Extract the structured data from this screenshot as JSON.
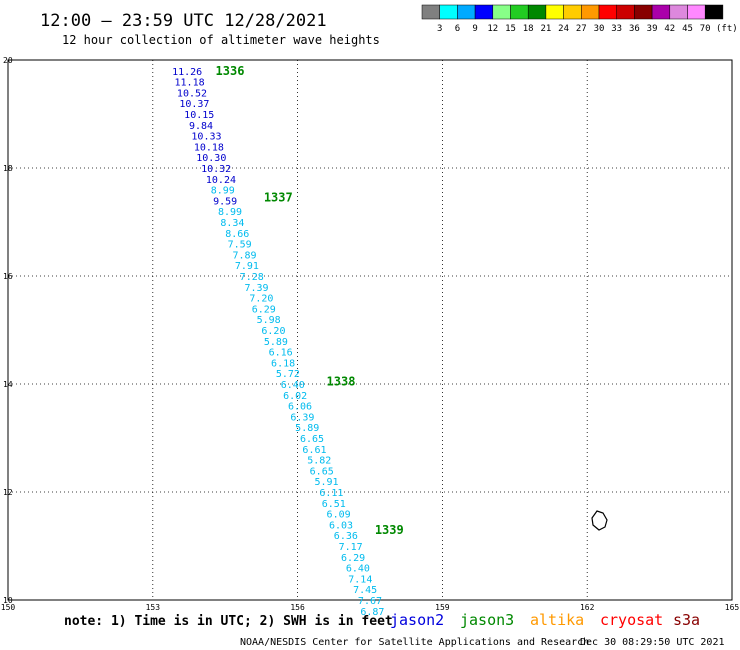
{
  "title": "12:00 – 23:59 UTC 12/28/2021",
  "subtitle": "12 hour collection of altimeter wave heights",
  "colorbar": {
    "labels": [
      "3",
      "6",
      "9",
      "12",
      "15",
      "18",
      "21",
      "24",
      "27",
      "30",
      "33",
      "36",
      "39",
      "42",
      "45",
      "70"
    ],
    "unit": "(ft)",
    "colors": [
      "#808080",
      "#00ffff",
      "#00aaff",
      "#0000ff",
      "#88ff88",
      "#22cc22",
      "#008800",
      "#ffff00",
      "#ffcc00",
      "#ff9900",
      "#ff0000",
      "#cc0000",
      "#880000",
      "#aa00aa",
      "#dd88dd",
      "#ff88ff",
      "#000000"
    ]
  },
  "axes": {
    "lon_ticks": [
      "150",
      "153",
      "156",
      "159",
      "162",
      "165"
    ],
    "lat_ticks": [
      "20",
      "18",
      "16",
      "14",
      "12",
      "10"
    ],
    "lon_range": [
      150,
      165
    ],
    "lat_range": [
      10,
      20
    ]
  },
  "passes": [
    {
      "label": "1336",
      "lon": 154.3,
      "lat": 19.8
    },
    {
      "label": "1337",
      "lon": 155.3,
      "lat": 17.45
    },
    {
      "label": "1338",
      "lon": 156.6,
      "lat": 14.05
    },
    {
      "label": "1339",
      "lon": 157.6,
      "lat": 11.3
    }
  ],
  "wave_points": [
    {
      "v": "11.26",
      "lon": 153.4,
      "lat": 19.8
    },
    {
      "v": "11.18",
      "lon": 153.45,
      "lat": 19.6
    },
    {
      "v": "10.52",
      "lon": 153.5,
      "lat": 19.4
    },
    {
      "v": "10.37",
      "lon": 153.55,
      "lat": 19.2
    },
    {
      "v": "10.15",
      "lon": 153.65,
      "lat": 19.0
    },
    {
      "v": "9.84",
      "lon": 153.75,
      "lat": 18.8
    },
    {
      "v": "10.33",
      "lon": 153.8,
      "lat": 18.6
    },
    {
      "v": "10.18",
      "lon": 153.85,
      "lat": 18.4
    },
    {
      "v": "10.30",
      "lon": 153.9,
      "lat": 18.2
    },
    {
      "v": "10.32",
      "lon": 154.0,
      "lat": 18.0
    },
    {
      "v": "10.24",
      "lon": 154.1,
      "lat": 17.8
    },
    {
      "v": "8.99",
      "lon": 154.2,
      "lat": 17.6
    },
    {
      "v": "9.59",
      "lon": 154.25,
      "lat": 17.4
    },
    {
      "v": "8.99",
      "lon": 154.35,
      "lat": 17.2
    },
    {
      "v": "8.34",
      "lon": 154.4,
      "lat": 17.0
    },
    {
      "v": "8.66",
      "lon": 154.5,
      "lat": 16.8
    },
    {
      "v": "7.59",
      "lon": 154.55,
      "lat": 16.6
    },
    {
      "v": "7.89",
      "lon": 154.65,
      "lat": 16.4
    },
    {
      "v": "7.91",
      "lon": 154.7,
      "lat": 16.2
    },
    {
      "v": "7.28",
      "lon": 154.8,
      "lat": 16.0
    },
    {
      "v": "7.39",
      "lon": 154.9,
      "lat": 15.8
    },
    {
      "v": "7.20",
      "lon": 155.0,
      "lat": 15.6
    },
    {
      "v": "6.29",
      "lon": 155.05,
      "lat": 15.4
    },
    {
      "v": "5.98",
      "lon": 155.15,
      "lat": 15.2
    },
    {
      "v": "6.20",
      "lon": 155.25,
      "lat": 15.0
    },
    {
      "v": "5.89",
      "lon": 155.3,
      "lat": 14.8
    },
    {
      "v": "6.16",
      "lon": 155.4,
      "lat": 14.6
    },
    {
      "v": "6.18",
      "lon": 155.45,
      "lat": 14.4
    },
    {
      "v": "5.72",
      "lon": 155.55,
      "lat": 14.2
    },
    {
      "v": "6.40",
      "lon": 155.65,
      "lat": 14.0
    },
    {
      "v": "6.02",
      "lon": 155.7,
      "lat": 13.8
    },
    {
      "v": "6.06",
      "lon": 155.8,
      "lat": 13.6
    },
    {
      "v": "6.39",
      "lon": 155.85,
      "lat": 13.4
    },
    {
      "v": "5.89",
      "lon": 155.95,
      "lat": 13.2
    },
    {
      "v": "6.65",
      "lon": 156.05,
      "lat": 13.0
    },
    {
      "v": "6.61",
      "lon": 156.1,
      "lat": 12.8
    },
    {
      "v": "5.82",
      "lon": 156.2,
      "lat": 12.6
    },
    {
      "v": "6.65",
      "lon": 156.25,
      "lat": 12.4
    },
    {
      "v": "5.91",
      "lon": 156.35,
      "lat": 12.2
    },
    {
      "v": "6.11",
      "lon": 156.45,
      "lat": 12.0
    },
    {
      "v": "6.51",
      "lon": 156.5,
      "lat": 11.8
    },
    {
      "v": "6.09",
      "lon": 156.6,
      "lat": 11.6
    },
    {
      "v": "6.03",
      "lon": 156.65,
      "lat": 11.4
    },
    {
      "v": "6.36",
      "lon": 156.75,
      "lat": 11.2
    },
    {
      "v": "7.17",
      "lon": 156.85,
      "lat": 11.0
    },
    {
      "v": "6.29",
      "lon": 156.9,
      "lat": 10.8
    },
    {
      "v": "6.40",
      "lon": 157.0,
      "lat": 10.6
    },
    {
      "v": "7.14",
      "lon": 157.05,
      "lat": 10.4
    },
    {
      "v": "7.45",
      "lon": 157.15,
      "lat": 10.2
    },
    {
      "v": "7.67",
      "lon": 157.25,
      "lat": 10.0
    },
    {
      "v": "6.87",
      "lon": 157.3,
      "lat": 9.8
    }
  ],
  "footer": {
    "note": "note: 1) Time is in UTC; 2) SWH is in feet",
    "satellites": [
      {
        "name": "jason2",
        "color": "#0000dd"
      },
      {
        "name": "jason3",
        "color": "#008800"
      },
      {
        "name": "altika",
        "color": "#ff9900"
      },
      {
        "name": "cryosat",
        "color": "#ff0000"
      },
      {
        "name": "s3a",
        "color": "#880000"
      }
    ],
    "credit": "NOAA/NESDIS Center for Satellite Applications and Research",
    "timestamp": "Dec 30 08:29:50 UTC 2021"
  },
  "colors": {
    "pass_label": "#008800",
    "value_dark": "#0000cc",
    "value_light": "#00bbee"
  }
}
